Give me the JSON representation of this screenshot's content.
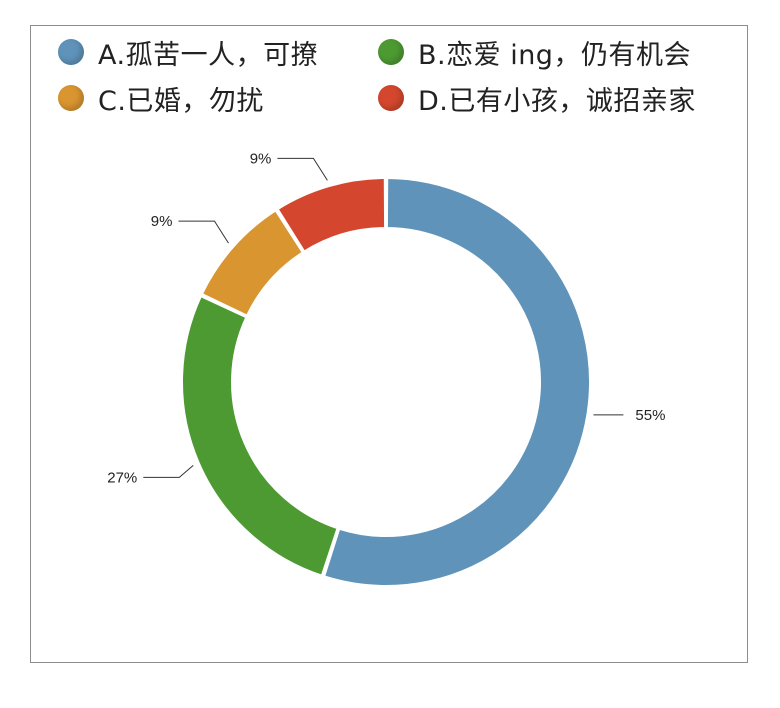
{
  "chart_data": {
    "type": "pie",
    "variant": "donut",
    "title": "",
    "legend_position": "top",
    "categories": [
      "A.孤苦一人，可撩",
      "B.恋爱 ing，仍有机会",
      "C.已婚，勿扰",
      "D.已有小孩，诚招亲家"
    ],
    "values": [
      55,
      27,
      9,
      9
    ],
    "labels": [
      "55%",
      "27%",
      "9%",
      "9%"
    ],
    "colors": [
      "#5f93b9",
      "#4d9a32",
      "#d99530",
      "#d4472e"
    ]
  }
}
